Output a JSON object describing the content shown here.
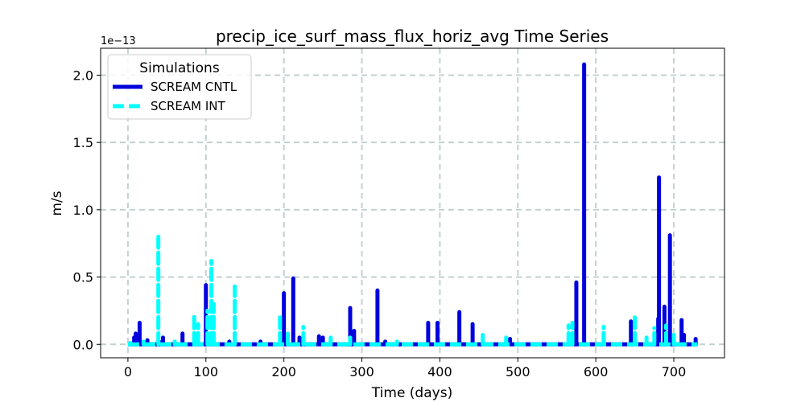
{
  "chart_data": {
    "type": "line",
    "title": "precip_ice_surf_mass_flux_horiz_avg Time Series",
    "xlabel": "Time (days)",
    "ylabel": "m/s",
    "y_offset_label": "1e−13",
    "xlim": [
      -35,
      765
    ],
    "ylim": [
      -0.1,
      2.2
    ],
    "xticks": [
      0,
      100,
      200,
      300,
      400,
      500,
      600,
      700
    ],
    "xtick_labels": [
      "0",
      "100",
      "200",
      "300",
      "400",
      "500",
      "600",
      "700"
    ],
    "yticks": [
      0.0,
      0.5,
      1.0,
      1.5,
      2.0
    ],
    "ytick_labels": [
      "0.0",
      "0.5",
      "1.0",
      "1.5",
      "2.0"
    ],
    "grid": true,
    "legend": {
      "title": "Simulations",
      "placement": "upper-left",
      "entries": [
        "SCREAM CNTL",
        "SCREAM INT"
      ]
    },
    "series": [
      {
        "name": "SCREAM CNTL",
        "color": "#0000dd",
        "style": "solid",
        "spikes": [
          [
            8,
            0.05
          ],
          [
            10,
            0.08
          ],
          [
            15,
            0.16
          ],
          [
            25,
            0.03
          ],
          [
            40,
            0.02
          ],
          [
            45,
            0.05
          ],
          [
            70,
            0.08
          ],
          [
            100,
            0.44
          ],
          [
            105,
            0.05
          ],
          [
            130,
            0.02
          ],
          [
            170,
            0.02
          ],
          [
            200,
            0.38
          ],
          [
            212,
            0.49
          ],
          [
            220,
            0.05
          ],
          [
            245,
            0.06
          ],
          [
            250,
            0.05
          ],
          [
            285,
            0.27
          ],
          [
            290,
            0.1
          ],
          [
            320,
            0.4
          ],
          [
            330,
            0.02
          ],
          [
            385,
            0.16
          ],
          [
            397,
            0.16
          ],
          [
            425,
            0.24
          ],
          [
            442,
            0.15
          ],
          [
            490,
            0.04
          ],
          [
            575,
            0.46
          ],
          [
            585,
            2.08
          ],
          [
            645,
            0.17
          ],
          [
            680,
            0.19
          ],
          [
            681,
            1.24
          ],
          [
            688,
            0.28
          ],
          [
            695,
            0.81
          ],
          [
            700,
            0.05
          ],
          [
            710,
            0.18
          ],
          [
            713,
            0.07
          ],
          [
            728,
            0.04
          ]
        ]
      },
      {
        "name": "SCREAM INT",
        "color": "#00ffff",
        "style": "dashed",
        "spikes": [
          [
            3,
            0.01
          ],
          [
            20,
            0.02
          ],
          [
            39,
            0.8
          ],
          [
            60,
            0.02
          ],
          [
            85,
            0.21
          ],
          [
            90,
            0.15
          ],
          [
            102,
            0.25
          ],
          [
            107,
            0.62
          ],
          [
            110,
            0.3
          ],
          [
            137,
            0.43
          ],
          [
            195,
            0.2
          ],
          [
            205,
            0.08
          ],
          [
            225,
            0.13
          ],
          [
            260,
            0.05
          ],
          [
            285,
            0.05
          ],
          [
            345,
            0.02
          ],
          [
            455,
            0.07
          ],
          [
            485,
            0.05
          ],
          [
            565,
            0.14
          ],
          [
            570,
            0.16
          ],
          [
            610,
            0.13
          ],
          [
            650,
            0.2
          ],
          [
            665,
            0.05
          ],
          [
            675,
            0.12
          ],
          [
            690,
            0.14
          ],
          [
            700,
            0.07
          ]
        ]
      }
    ]
  }
}
